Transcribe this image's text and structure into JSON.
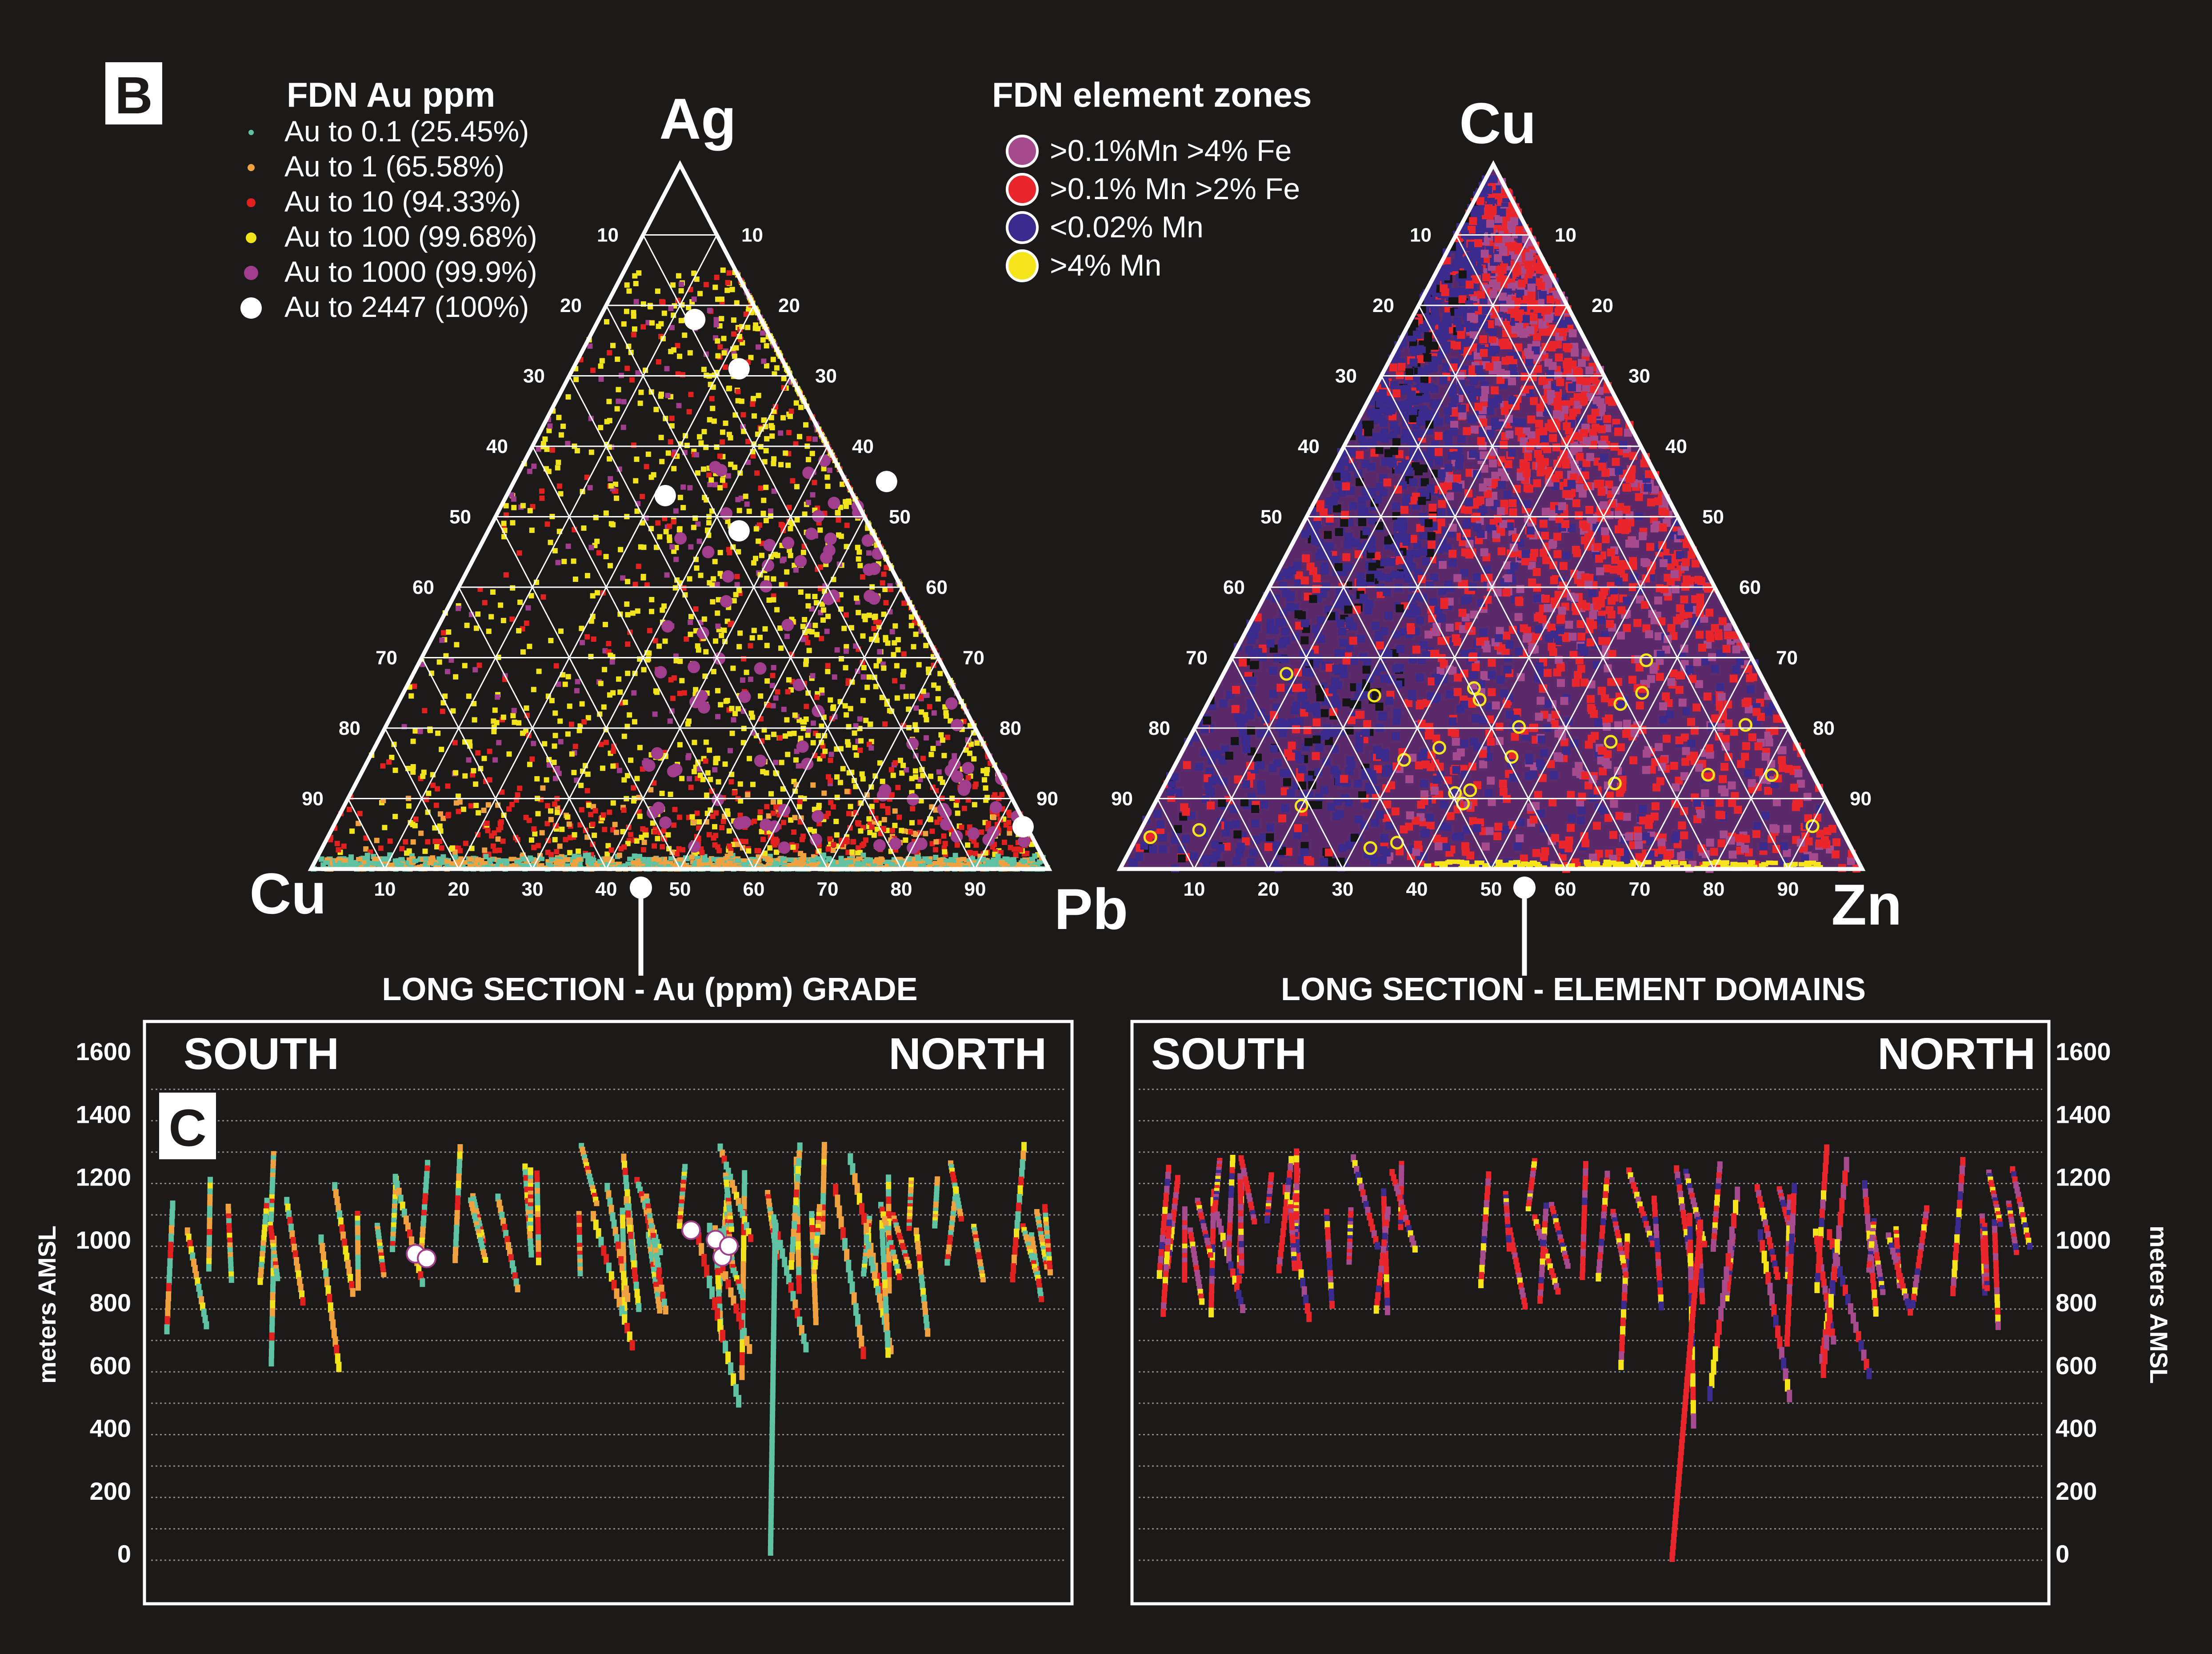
{
  "panel_labels": {
    "b": "B",
    "c": "C"
  },
  "legend_au": {
    "title": "FDN Au ppm",
    "items": [
      {
        "label": "Au to 0.1 (25.45%)",
        "color": "#5fc2a2"
      },
      {
        "label": "Au to 1 (65.58%)",
        "color": "#f0a140"
      },
      {
        "label": "Au to 10 (94.33%)",
        "color": "#e0211f"
      },
      {
        "label": "Au to 100 (99.68%)",
        "color": "#f2e41c"
      },
      {
        "label": "Au to 1000 (99.9%)",
        "color": "#a03d8c"
      },
      {
        "label": "Au to 2447 (100%)",
        "color": "#ffffff"
      }
    ]
  },
  "legend_zones": {
    "title": "FDN element zones",
    "items": [
      {
        "label": ">0.1%Mn >4% Fe",
        "color": "#a64b8e"
      },
      {
        "label": ">0.1% Mn >2% Fe",
        "color": "#e8262b"
      },
      {
        "label": "<0.02% Mn",
        "color": "#3b2b8c"
      },
      {
        "label": ">4% Mn",
        "color": "#f7e51b"
      }
    ]
  },
  "ternary_left": {
    "top": "Ag",
    "left": "Cu",
    "right": "Pb",
    "ticks": [
      "10",
      "20",
      "30",
      "40",
      "50",
      "60",
      "70",
      "80",
      "90"
    ]
  },
  "ternary_right": {
    "top": "Cu",
    "left": "",
    "right": "Zn",
    "ticks": [
      "10",
      "20",
      "30",
      "40",
      "50",
      "60",
      "70",
      "80",
      "90"
    ]
  },
  "section_left": {
    "title": "LONG SECTION - Au (ppm) GRADE",
    "south": "SOUTH",
    "north": "NORTH",
    "ylabel": "meters AMSL"
  },
  "section_right": {
    "title": "LONG SECTION - ELEMENT DOMAINS",
    "south": "SOUTH",
    "north": "NORTH",
    "ylabel": "meters AMSL"
  },
  "chart_data": [
    {
      "type": "scatter",
      "title": "FDN Au ppm",
      "axes": {
        "top": "Ag",
        "left": "Cu",
        "right": "Pb"
      },
      "tick_labels": [
        "10",
        "20",
        "30",
        "40",
        "50",
        "60",
        "70",
        "80",
        "90"
      ],
      "series": [
        {
          "name": "Au to 0.1 (25.45%)",
          "points": [
            [
              50,
              1
            ],
            [
              60,
              1
            ],
            [
              70,
              1
            ],
            [
              80,
              1
            ],
            [
              85,
              1
            ]
          ]
        },
        {
          "name": "Au to 10 (94.33%)",
          "points": [
            [
              40,
              5
            ],
            [
              50,
              6
            ],
            [
              60,
              8
            ],
            [
              70,
              10
            ],
            [
              20,
              8
            ]
          ]
        },
        {
          "name": "Au to 100 (99.68%)",
          "points": [
            [
              80,
              8
            ],
            [
              85,
              10
            ],
            [
              70,
              15
            ],
            [
              60,
              30
            ],
            [
              55,
              45
            ]
          ]
        },
        {
          "name": "Au to 1000 (99.9%)",
          "points": [
            [
              88,
              6
            ],
            [
              80,
              15
            ],
            [
              65,
              30
            ],
            [
              55,
              50
            ]
          ]
        },
        {
          "name": "Au to 2447 (100%)",
          "points": [
            [
              40,
              78
            ],
            [
              35,
              70
            ],
            [
              45,
              55
            ],
            [
              30,
              53
            ],
            [
              45,
              50
            ],
            [
              6,
              6
            ]
          ]
        }
      ]
    },
    {
      "type": "scatter",
      "title": "FDN element zones",
      "axes": {
        "top": "Cu",
        "right": "Zn"
      },
      "tick_labels": [
        "10",
        "20",
        "30",
        "40",
        "50",
        "60",
        "70",
        "80",
        "90"
      ],
      "series": [
        {
          "name": "<0.02% Mn",
          "dominant_region": "Cu-rich"
        },
        {
          "name": ">0.1% Mn >2% Fe",
          "dominant_region": "Zn-rich"
        },
        {
          "name": ">0.1%Mn >4% Fe",
          "dominant_region": "Zn-rich"
        },
        {
          "name": ">4% Mn",
          "dominant_region": "base"
        }
      ]
    },
    {
      "type": "scatter",
      "title": "LONG SECTION - Au (ppm) GRADE",
      "ylabel": "meters AMSL",
      "y_ticks": [
        1600,
        1400,
        1200,
        1000,
        800,
        600,
        400,
        200,
        0
      ]
    },
    {
      "type": "scatter",
      "title": "LONG SECTION - ELEMENT DOMAINS",
      "ylabel": "meters AMSL",
      "y_ticks": [
        1600,
        1400,
        1200,
        1000,
        800,
        600,
        400,
        200,
        0
      ]
    }
  ]
}
